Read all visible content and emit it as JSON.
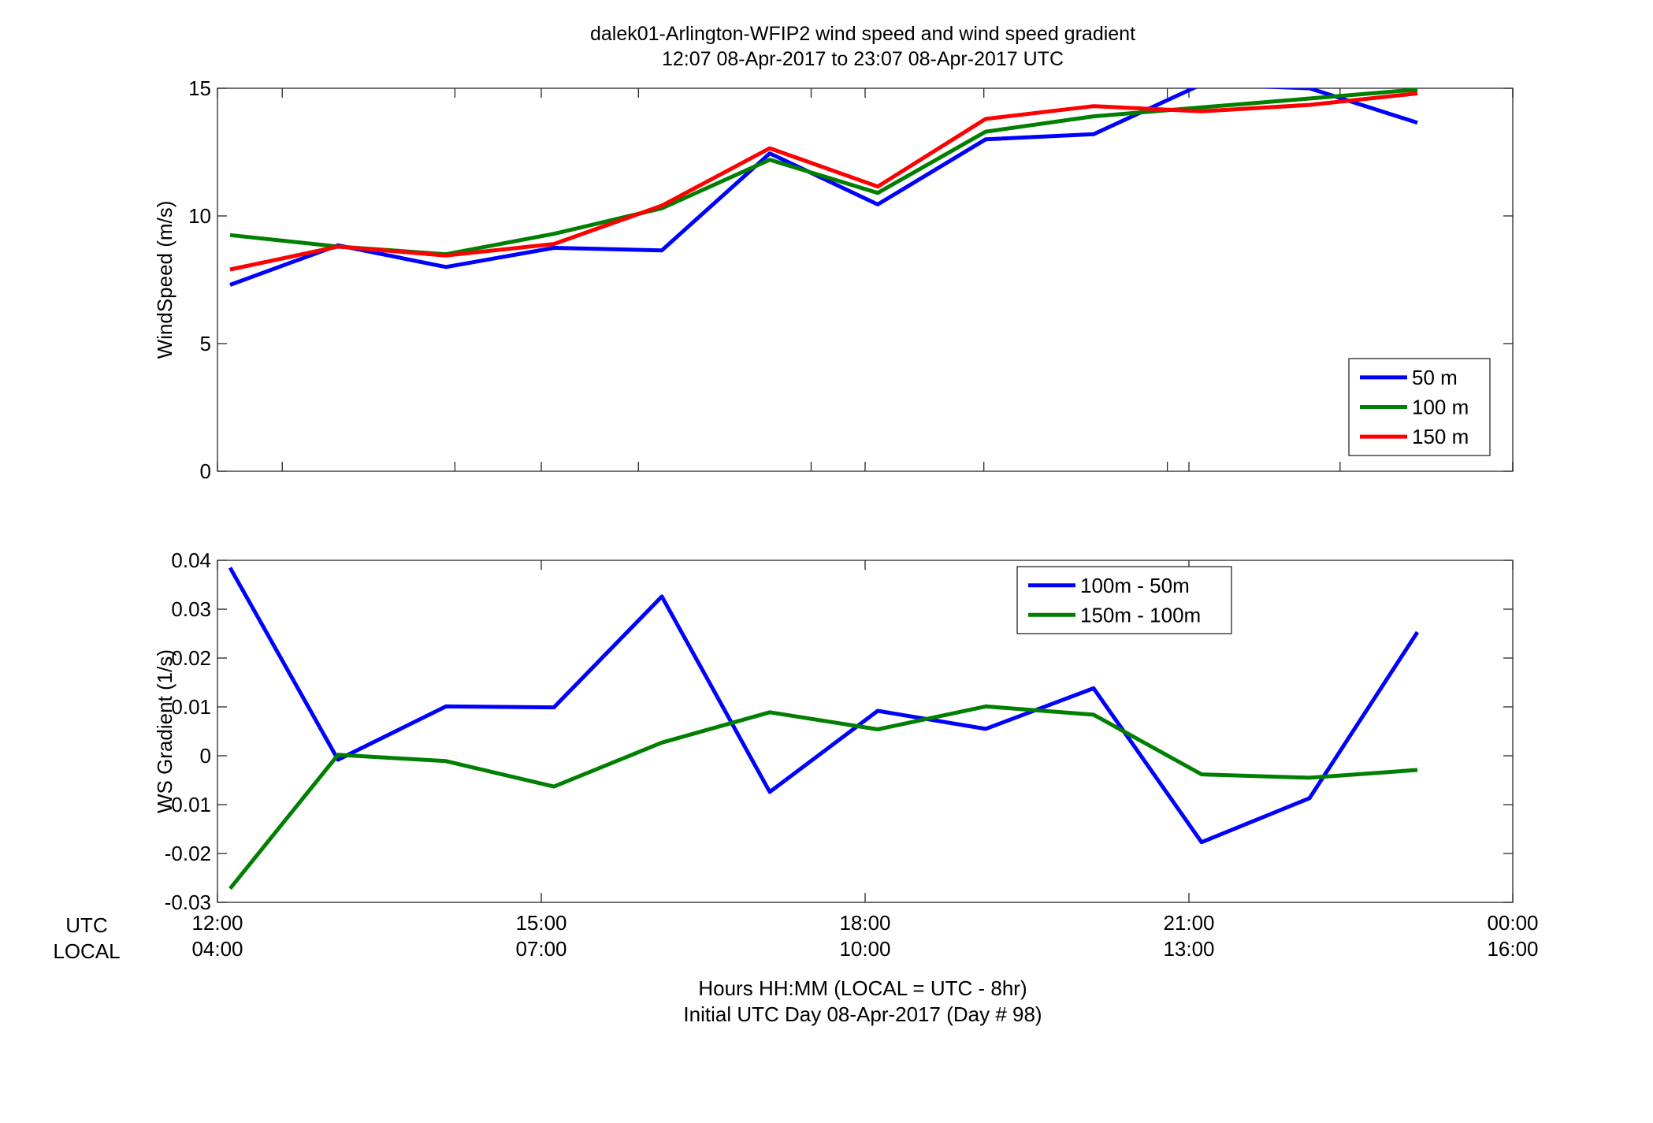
{
  "title": {
    "line1": "dalek01-Arlington-WFIP2  wind speed and wind speed gradient",
    "line2": "12:07 08-Apr-2017 to 23:07 08-Apr-2017  UTC"
  },
  "x_axis": {
    "row_labels": {
      "utc": "UTC",
      "local": "LOCAL"
    },
    "ticks": [
      {
        "hour": 12,
        "utc": "12:00",
        "local": "04:00"
      },
      {
        "hour": 15,
        "utc": "15:00",
        "local": "07:00"
      },
      {
        "hour": 18,
        "utc": "18:00",
        "local": "10:00"
      },
      {
        "hour": 21,
        "utc": "21:00",
        "local": "13:00"
      },
      {
        "hour": 24,
        "utc": "00:00",
        "local": "16:00"
      }
    ],
    "label_line1": "Hours HH:MM  (LOCAL = UTC - 8hr)",
    "label_line2": "Initial UTC Day 08-Apr-2017 (Day # 98)"
  },
  "chart_data": [
    {
      "type": "line",
      "ylabel": "WindSpeed (m/s)",
      "xlim": [
        12,
        24
      ],
      "ylim": [
        0,
        15
      ],
      "yticks": [
        0,
        5,
        10,
        15
      ],
      "yticklabels": [
        "0",
        "5",
        "10",
        "15"
      ],
      "legend_position": "bottom-right",
      "x": [
        12.117,
        13.117,
        14.117,
        15.117,
        16.117,
        17.117,
        18.117,
        19.117,
        20.117,
        21.117,
        22.117,
        23.117
      ],
      "series": [
        {
          "name": "50 m",
          "color": "#0000ff",
          "values": [
            7.3,
            8.85,
            8.0,
            8.75,
            8.65,
            12.45,
            10.45,
            13.0,
            13.2,
            15.15,
            15.0,
            13.65
          ]
        },
        {
          "name": "100 m",
          "color": "#007f00",
          "values": [
            9.25,
            8.8,
            8.5,
            9.3,
            10.3,
            12.2,
            10.9,
            13.3,
            13.9,
            14.25,
            14.6,
            14.95
          ]
        },
        {
          "name": "150 m",
          "color": "#ff0000",
          "values": [
            7.9,
            8.8,
            8.45,
            8.9,
            10.4,
            12.65,
            11.15,
            13.8,
            14.3,
            14.1,
            14.35,
            14.8
          ]
        }
      ]
    },
    {
      "type": "line",
      "ylabel": "WS Gradient (1/s)",
      "xlim": [
        12,
        24
      ],
      "ylim": [
        -0.03,
        0.04
      ],
      "yticks": [
        -0.03,
        -0.02,
        -0.01,
        0,
        0.01,
        0.02,
        0.03,
        0.04
      ],
      "yticklabels": [
        "-0.03",
        "-0.02",
        "-0.01",
        "0",
        "0.01",
        "0.02",
        "0.03",
        "0.04"
      ],
      "legend_position": "top-center",
      "x": [
        12.117,
        13.117,
        14.117,
        15.117,
        16.117,
        17.117,
        18.117,
        19.117,
        20.117,
        21.117,
        22.117,
        23.117
      ],
      "series": [
        {
          "name": "100m - 50m",
          "color": "#0000ff",
          "values": [
            0.0385,
            -0.0008,
            0.0101,
            0.0099,
            0.0326,
            -0.0074,
            0.0092,
            0.0055,
            0.0138,
            -0.0177,
            -0.0087,
            0.0253
          ]
        },
        {
          "name": "150m - 100m",
          "color": "#007f00",
          "values": [
            -0.0272,
            0.0002,
            -0.0011,
            -0.0063,
            0.0027,
            0.0089,
            0.0054,
            0.0101,
            0.0084,
            -0.0038,
            -0.0045,
            -0.0029
          ]
        }
      ]
    }
  ]
}
